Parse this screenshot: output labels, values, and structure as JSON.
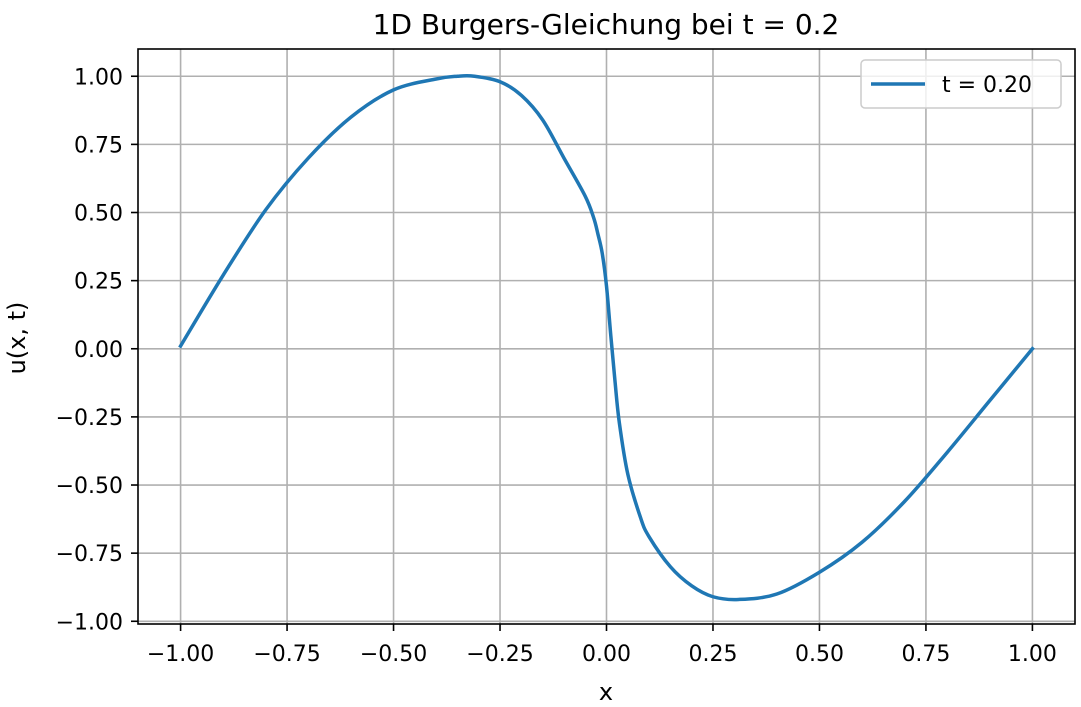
{
  "chart_data": {
    "type": "line",
    "title": "1D Burgers-Gleichung bei t = 0.2",
    "xlabel": "x",
    "ylabel": "u(x, t)",
    "xlim": [
      -1.1,
      1.1
    ],
    "ylim": [
      -1.01,
      1.1
    ],
    "xticks": [
      -1.0,
      -0.75,
      -0.5,
      -0.25,
      0.0,
      0.25,
      0.5,
      0.75,
      1.0
    ],
    "xtick_labels": [
      "−1.00",
      "−0.75",
      "−0.50",
      "−0.25",
      "0.00",
      "0.25",
      "0.50",
      "0.75",
      "1.00"
    ],
    "yticks": [
      1.0,
      0.75,
      0.5,
      0.25,
      0.0,
      -0.25,
      -0.5,
      -0.75,
      -1.0
    ],
    "ytick_labels": [
      "1.00",
      "0.75",
      "0.50",
      "0.25",
      "0.00",
      "−0.25",
      "−0.50",
      "−0.75",
      "−1.00"
    ],
    "grid": true,
    "legend_position": "top-right",
    "series": [
      {
        "name": "t = 0.20",
        "color": "#1f77b4",
        "x": [
          -1.0,
          -0.9,
          -0.8,
          -0.7,
          -0.6,
          -0.5,
          -0.4,
          -0.35,
          -0.31,
          -0.25,
          -0.2,
          -0.15,
          -0.1,
          -0.05,
          -0.03,
          -0.02,
          -0.01,
          0.0,
          0.01,
          0.02,
          0.03,
          0.05,
          0.08,
          0.1,
          0.15,
          0.2,
          0.25,
          0.31,
          0.4,
          0.5,
          0.6,
          0.7,
          0.8,
          0.9,
          1.0
        ],
        "y": [
          0.01,
          0.27,
          0.51,
          0.7,
          0.85,
          0.95,
          0.99,
          1.0,
          1.0,
          0.98,
          0.93,
          0.84,
          0.7,
          0.56,
          0.48,
          0.42,
          0.35,
          0.23,
          0.05,
          -0.12,
          -0.27,
          -0.46,
          -0.62,
          -0.69,
          -0.8,
          -0.87,
          -0.91,
          -0.92,
          -0.9,
          -0.82,
          -0.71,
          -0.56,
          -0.38,
          -0.19,
          0.0
        ]
      }
    ]
  }
}
